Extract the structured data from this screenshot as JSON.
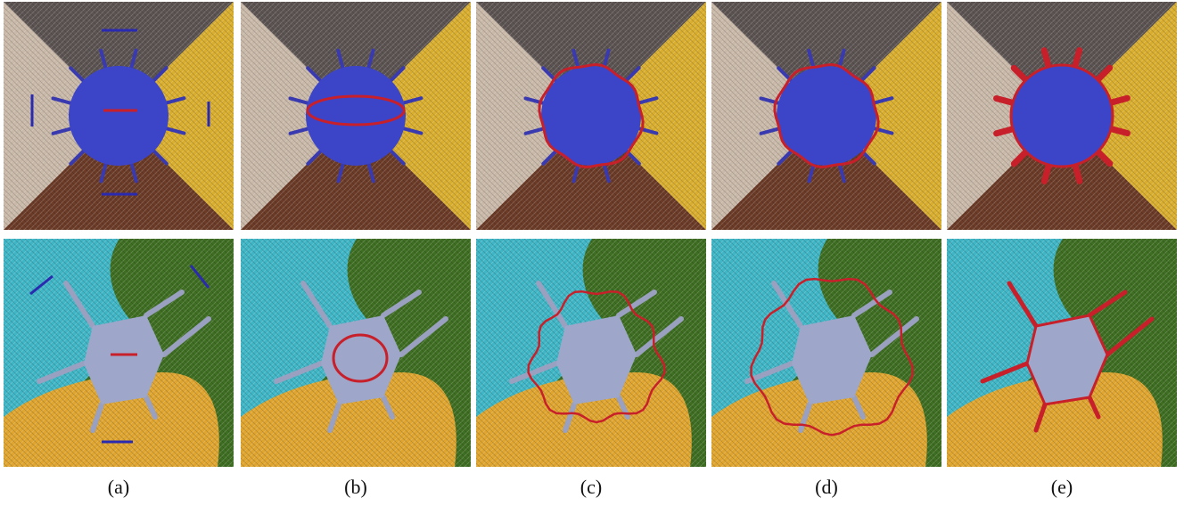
{
  "captions": [
    "(a)",
    "(b)",
    "(c)",
    "(d)",
    "(e)"
  ]
}
